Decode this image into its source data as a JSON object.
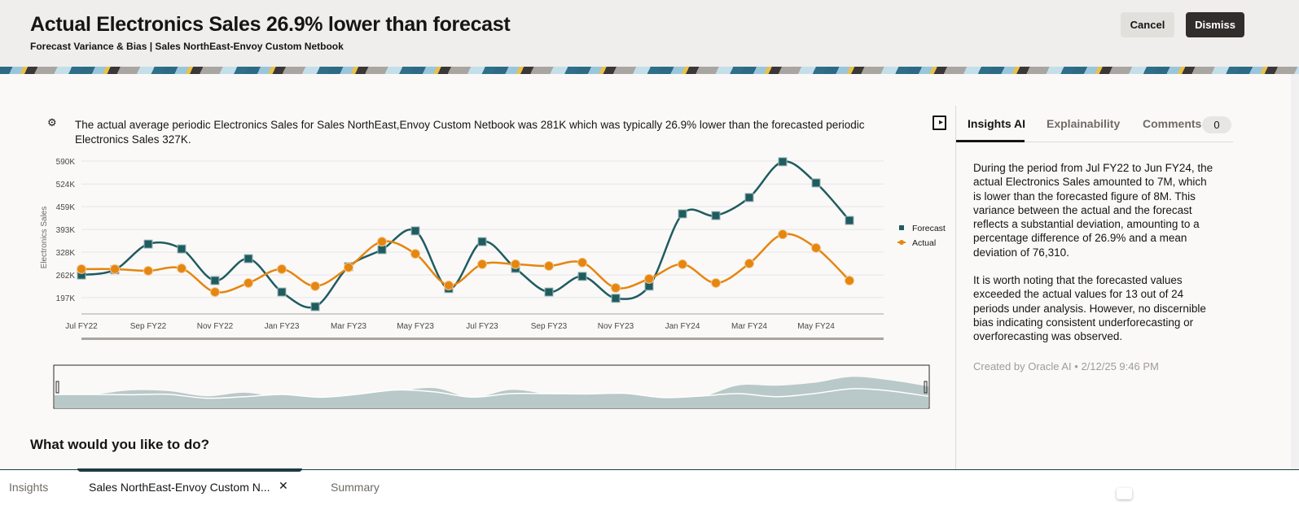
{
  "header": {
    "title": "Actual Electronics Sales 26.9% lower than forecast",
    "subtitle": "Forecast Variance & Bias | Sales NorthEast-Envoy Custom Netbook",
    "cancel_label": "Cancel",
    "dismiss_label": "Dismiss"
  },
  "insight": {
    "icon": "ai-robot-icon",
    "text": "The actual average periodic Electronics Sales for Sales NorthEast,Envoy Custom Netbook was 281K which was typically 26.9% lower than the forecasted periodic Electronics Sales 327K."
  },
  "side_panel": {
    "tabs": [
      {
        "label": "Insights AI",
        "active": true
      },
      {
        "label": "Explainability",
        "active": false
      },
      {
        "label": "Comments",
        "active": false,
        "count": "0"
      }
    ],
    "paragraphs": [
      "During the period from Jul FY22 to Jun FY24, the actual Electronics Sales amounted to 7M, which is lower than the forecasted figure of 8M. This variance between the actual and the forecast reflects a substantial deviation, amounting to a percentage difference of 26.9% and a mean deviation of 76,310.",
      "It is worth noting that the forecasted values exceeded the actual values for 13 out of 24 periods under analysis. However, no discernible bias indicating consistent underforecasting or overforecasting was observed."
    ],
    "meta": "Created by Oracle AI • 2/12/25 9:46 PM"
  },
  "prompt": "What would you like to do?",
  "bottom_tabs": [
    {
      "label": "Insights",
      "active": false
    },
    {
      "label": "Sales NorthEast-Envoy Custom N...",
      "active": true,
      "closable": true
    },
    {
      "label": "Summary",
      "active": false
    }
  ],
  "chart_data": {
    "type": "line",
    "ylabel": "Electronics Sales",
    "xlabel": "",
    "x": [
      "Jul FY22",
      "Aug FY22",
      "Sep FY22",
      "Oct FY22",
      "Nov FY22",
      "Dec FY22",
      "Jan FY23",
      "Feb FY23",
      "Mar FY23",
      "Apr FY23",
      "May FY23",
      "Jun FY23",
      "Jul FY23",
      "Aug FY23",
      "Sep FY23",
      "Oct FY23",
      "Nov FY23",
      "Dec FY23",
      "Jan FY24",
      "Feb FY24",
      "Mar FY24",
      "Apr FY24",
      "May FY24",
      "Jun FY24"
    ],
    "x_tick_labels": [
      "Jul FY22",
      "Sep FY22",
      "Nov FY22",
      "Jan FY23",
      "Mar FY23",
      "May FY23",
      "Jul FY23",
      "Sep FY23",
      "Nov FY23",
      "Jan FY24",
      "Mar FY24",
      "May FY24"
    ],
    "y_tick_labels": [
      "197K",
      "262K",
      "328K",
      "393K",
      "459K",
      "524K",
      "590K"
    ],
    "y_ticks": [
      197,
      262,
      328,
      393,
      459,
      524,
      590
    ],
    "ylim": [
      150,
      590
    ],
    "y_unit": "K",
    "grid": true,
    "legend": "right",
    "series": [
      {
        "name": "Forecast",
        "color": "#1f5c60",
        "marker": "square",
        "values": [
          262,
          277,
          351,
          337,
          246,
          309,
          213,
          171,
          286,
          335,
          389,
          223,
          358,
          281,
          213,
          258,
          195,
          230,
          438,
          433,
          485,
          588,
          527,
          419
        ]
      },
      {
        "name": "Actual",
        "color": "#e5860f",
        "marker": "circle",
        "values": [
          279,
          279,
          274,
          281,
          213,
          239,
          279,
          230,
          284,
          358,
          323,
          232,
          293,
          293,
          288,
          298,
          225,
          251,
          293,
          239,
          295,
          379,
          340,
          246
        ]
      }
    ]
  }
}
